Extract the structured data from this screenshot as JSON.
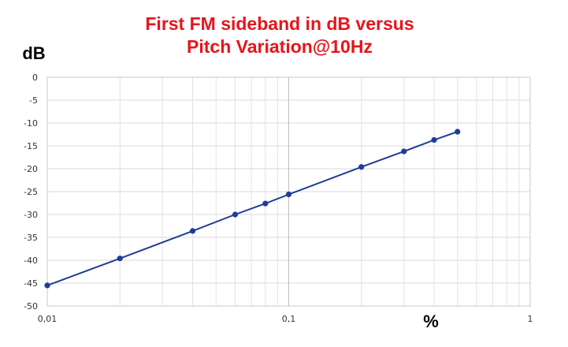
{
  "chart_data": {
    "type": "line",
    "title_lines": [
      "First FM sideband in dB versus",
      "Pitch Variation@10Hz"
    ],
    "xlabel": "%",
    "ylabel": "dB",
    "x_scale": "log",
    "xlim": [
      0.01,
      1
    ],
    "ylim": [
      -50,
      0
    ],
    "x_ticks": [
      "0,01",
      "0,1",
      "1"
    ],
    "y_ticks": [
      "0",
      "-5",
      "-10",
      "-15",
      "-20",
      "-25",
      "-30",
      "-35",
      "-40",
      "-45",
      "-50"
    ],
    "grid": true,
    "series": [
      {
        "color": "#1f3c99",
        "points": [
          {
            "x": 0.01,
            "y": -45.5
          },
          {
            "x": 0.02,
            "y": -39.6
          },
          {
            "x": 0.04,
            "y": -33.6
          },
          {
            "x": 0.06,
            "y": -30.0
          },
          {
            "x": 0.08,
            "y": -27.6
          },
          {
            "x": 0.1,
            "y": -25.6
          },
          {
            "x": 0.2,
            "y": -19.6
          },
          {
            "x": 0.3,
            "y": -16.2
          },
          {
            "x": 0.4,
            "y": -13.7
          },
          {
            "x": 0.5,
            "y": -11.9
          }
        ]
      }
    ]
  }
}
